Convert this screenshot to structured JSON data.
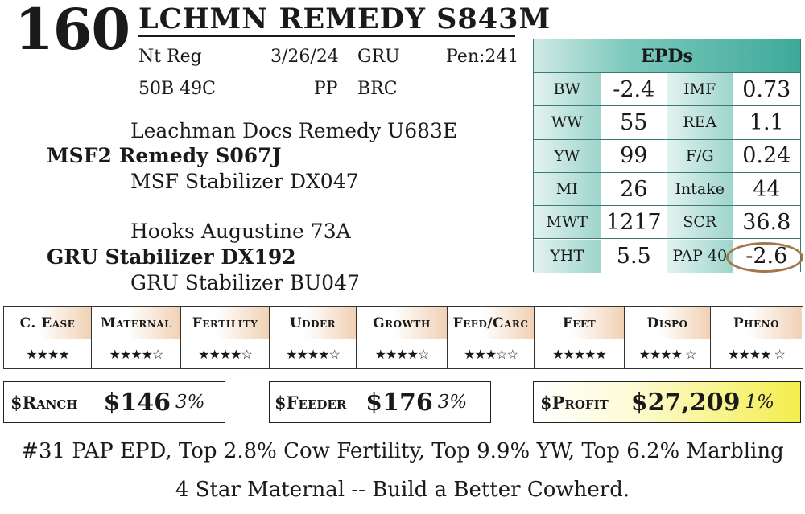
{
  "lot": "160",
  "name": "LCHMN REMEDY S843M",
  "info_row1": {
    "reg": "Nt Reg",
    "date": "3/26/24",
    "herd": "GRU",
    "pen": "Pen:241"
  },
  "info_row2": {
    "id": "50B 49C",
    "polled": "PP",
    "brand": "BRC"
  },
  "pedigree": {
    "sire_sire": "Leachman Docs Remedy U683E",
    "sire": "MSF2 Remedy S067J",
    "sire_dam": "MSF Stabilizer DX047",
    "dam_sire": "Hooks Augustine 73A",
    "dam": "GRU Stabilizer DX192",
    "dam_dam": "GRU Stabilizer BU047"
  },
  "epd": {
    "title": "EPDs",
    "rows": [
      {
        "l1": "BW",
        "v1": "-2.4",
        "l2": "IMF",
        "v2": "0.73"
      },
      {
        "l1": "WW",
        "v1": "55",
        "l2": "REA",
        "v2": "1.1"
      },
      {
        "l1": "YW",
        "v1": "99",
        "l2": "F/G",
        "v2": "0.24"
      },
      {
        "l1": "MI",
        "v1": "26",
        "l2": "Intake",
        "v2": "44"
      },
      {
        "l1": "MWT",
        "v1": "1217",
        "l2": "SCR",
        "v2": "36.8"
      },
      {
        "l1": "YHT",
        "v1": "5.5",
        "l2": "PAP 40",
        "v2": "-2.6"
      }
    ]
  },
  "traits": [
    {
      "label": "C. Ease",
      "stars": "★★★★"
    },
    {
      "label": "Maternal",
      "stars": "★★★★☆"
    },
    {
      "label": "Fertility",
      "stars": "★★★★☆"
    },
    {
      "label": "Udder",
      "stars": "★★★★☆"
    },
    {
      "label": "Growth",
      "stars": "★★★★☆"
    },
    {
      "label": "Feed/Carc",
      "stars": "★★★☆☆"
    },
    {
      "label": "Feet",
      "stars": "★★★★★"
    },
    {
      "label": "Dispo",
      "stars": "★★★★ ☆"
    },
    {
      "label": "Pheno",
      "stars": "★★★★ ☆"
    }
  ],
  "indexes": {
    "ranch": {
      "label": "$Ranch",
      "value": "$146",
      "pct": "3%"
    },
    "feeder": {
      "label": "$Feeder",
      "value": "$176",
      "pct": "3%"
    },
    "profit": {
      "label": "$Profit",
      "value": "$27,209",
      "pct": "1%"
    }
  },
  "footer": {
    "line1": "#31 PAP EPD, Top 2.8% Cow Fertility, Top 9.9% YW, Top 6.2% Marbling",
    "line2": "4 Star Maternal -- Build a Better Cowherd."
  }
}
